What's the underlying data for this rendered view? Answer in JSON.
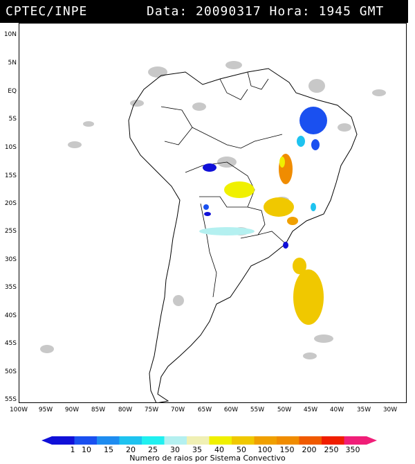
{
  "header": {
    "source": "CPTEC/INPE",
    "datetime": "Data: 20090317 Hora: 1945 GMT"
  },
  "lat_labels": [
    "10N",
    "5N",
    "EQ",
    "5S",
    "10S",
    "15S",
    "20S",
    "25S",
    "30S",
    "35S",
    "40S",
    "45S",
    "50S",
    "55S"
  ],
  "lon_labels": [
    "100W",
    "95W",
    "90W",
    "85W",
    "80W",
    "75W",
    "70W",
    "65W",
    "60W",
    "55W",
    "50W",
    "45W",
    "40W",
    "35W",
    "30W"
  ],
  "colorbar": {
    "title": "Numero de raios por Sistema Convectivo",
    "ticks": [
      "1",
      "10",
      "15",
      "20",
      "25",
      "30",
      "35",
      "40",
      "50",
      "100",
      "150",
      "200",
      "250",
      "350"
    ],
    "colors": [
      "#1010d8",
      "#1a50f0",
      "#1e8cf0",
      "#1ec3f0",
      "#20f0f0",
      "#b4f0f0",
      "#f0f0b4",
      "#f0f000",
      "#f0c800",
      "#f0a000",
      "#f08c00",
      "#f05a00",
      "#f01e00",
      "#f01e78"
    ]
  }
}
